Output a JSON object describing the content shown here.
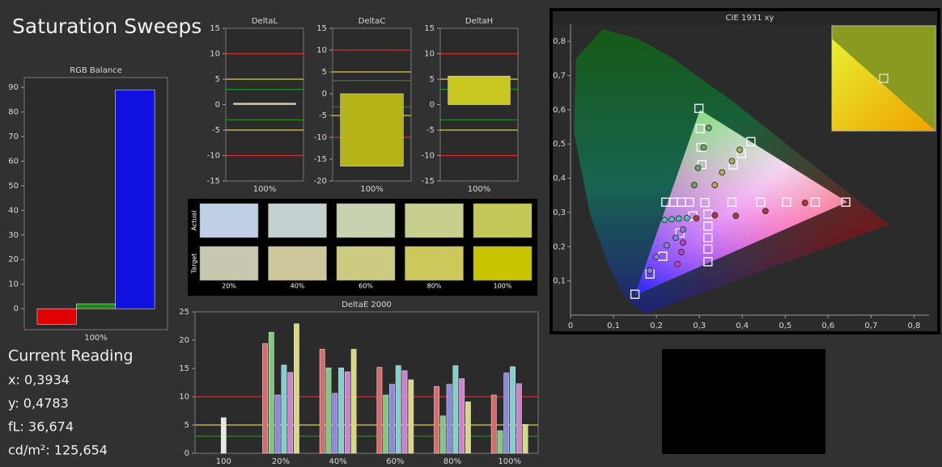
{
  "title": "Saturation Sweeps",
  "chart_data": [
    {
      "type": "bar",
      "title": "RGB Balance",
      "categories": [
        "100%"
      ],
      "series": [
        {
          "color": "#e00000",
          "values": [
            -6.3
          ]
        },
        {
          "color": "#1a8a1a",
          "values": [
            2
          ]
        },
        {
          "color": "#1010e0",
          "values": [
            89
          ]
        }
      ],
      "ylim": [
        -8.5,
        94
      ],
      "yticks": [
        0,
        10,
        20,
        30,
        40,
        50,
        60,
        70,
        80,
        90
      ]
    },
    {
      "type": "bar",
      "title": "DeltaL",
      "categories": [
        "100%"
      ],
      "series": [
        {
          "color": "#c8c8a0",
          "values": [
            0.3
          ]
        }
      ],
      "ylim": [
        -15,
        15
      ],
      "yticks": [
        -15,
        -10,
        -5,
        0,
        5,
        10,
        15
      ],
      "threshold_lines": [
        {
          "value": 10,
          "color": "#d03030"
        },
        {
          "value": 5,
          "color": "#d8d040"
        },
        {
          "value": 3,
          "color": "#2a8a2a"
        },
        {
          "value": -3,
          "color": "#2a8a2a"
        },
        {
          "value": -5,
          "color": "#d8d040"
        },
        {
          "value": -10,
          "color": "#d03030"
        }
      ]
    },
    {
      "type": "bar",
      "title": "DeltaC",
      "categories": [
        "100%"
      ],
      "series": [
        {
          "color": "#b4b418",
          "values": [
            -16.6
          ]
        }
      ],
      "ylim": [
        -20,
        15
      ],
      "yticks": [
        -20,
        -15,
        -10,
        -5,
        0,
        5,
        10,
        15
      ],
      "threshold_lines": [
        {
          "value": 10,
          "color": "#d03030"
        },
        {
          "value": 5,
          "color": "#d8d040"
        },
        {
          "value": 3,
          "color": "#2a8a2a"
        },
        {
          "value": -3,
          "color": "#2a8a2a"
        },
        {
          "value": -5,
          "color": "#d8d040"
        },
        {
          "value": -10,
          "color": "#d03030"
        }
      ]
    },
    {
      "type": "bar",
      "title": "DeltaH",
      "categories": [
        "100%"
      ],
      "series": [
        {
          "color": "#c8c820",
          "values": [
            5.6
          ]
        }
      ],
      "ylim": [
        -15,
        15
      ],
      "yticks": [
        -15,
        -10,
        -5,
        0,
        5,
        10,
        15
      ],
      "threshold_lines": [
        {
          "value": 10,
          "color": "#d03030"
        },
        {
          "value": 5,
          "color": "#d8d040"
        },
        {
          "value": 3,
          "color": "#2a8a2a"
        },
        {
          "value": -3,
          "color": "#2a8a2a"
        },
        {
          "value": -5,
          "color": "#d8d040"
        },
        {
          "value": -10,
          "color": "#d03030"
        }
      ]
    },
    {
      "type": "bar",
      "title": "DeltaE 2000",
      "categories": [
        "100",
        "20%",
        "40%",
        "60%",
        "80%",
        "100%"
      ],
      "series": [
        {
          "color": "#e8e8e8",
          "values": [
            6.3,
            null,
            null,
            null,
            null,
            null
          ]
        },
        {
          "color": "#d86a6a",
          "values": [
            null,
            19.4,
            18.4,
            15.2,
            11.8,
            10.3
          ]
        },
        {
          "color": "#80c880",
          "values": [
            null,
            21.4,
            15.1,
            10.3,
            6.6,
            4.0
          ]
        },
        {
          "color": "#8a8ae0",
          "values": [
            null,
            10.3,
            10.6,
            12.2,
            12.2,
            14.2
          ]
        },
        {
          "color": "#80d0d0",
          "values": [
            null,
            15.6,
            15.1,
            15.5,
            15.5,
            15.3
          ]
        },
        {
          "color": "#d080d0",
          "values": [
            null,
            14.3,
            14.4,
            14.6,
            13.2,
            12.3
          ]
        },
        {
          "color": "#d8d880",
          "values": [
            null,
            22.9,
            18.4,
            13.0,
            9.1,
            5.1
          ]
        }
      ],
      "ylim": [
        0,
        25
      ],
      "yticks": [
        0,
        5,
        10,
        15,
        20,
        25
      ],
      "threshold_lines": [
        {
          "value": 10,
          "color": "#d03030"
        },
        {
          "value": 5,
          "color": "#d8d040"
        },
        {
          "value": 3,
          "color": "#2a8a2a"
        }
      ]
    },
    {
      "type": "scatter",
      "title": "CIE 1931 xy",
      "series": [
        {
          "marker": "square",
          "color": "#ffffff",
          "x": [
            0.376,
            0.443,
            0.503,
            0.57,
            0.641,
            0.306,
            0.304,
            0.302,
            0.299,
            0.285,
            0.255,
            0.215,
            0.185,
            0.15,
            0.222,
            0.24,
            0.258,
            0.277,
            0.32,
            0.32,
            0.32,
            0.32,
            0.32,
            0.379,
            0.398,
            0.42,
            0.313
          ],
          "values": [
            0.33,
            0.33,
            0.33,
            0.33,
            0.33,
            0.44,
            0.49,
            0.545,
            0.604,
            0.29,
            0.24,
            0.172,
            0.12,
            0.061,
            0.33,
            0.33,
            0.33,
            0.33,
            0.295,
            0.26,
            0.226,
            0.193,
            0.156,
            0.439,
            0.472,
            0.507,
            0.329
          ]
        },
        {
          "marker": "circle",
          "color": "#b03a3a",
          "x": [
            0.293,
            0.336,
            0.385,
            0.454,
            0.546
          ],
          "values": [
            0.283,
            0.292,
            0.29,
            0.304,
            0.328
          ]
        },
        {
          "marker": "circle",
          "color": "#6aa85a",
          "x": [
            0.288,
            0.297,
            0.31,
            0.322
          ],
          "values": [
            0.38,
            0.43,
            0.49,
            0.547
          ]
        },
        {
          "marker": "circle",
          "color": "#8080d8",
          "x": [
            0.262,
            0.245,
            0.224,
            0.2,
            0.185
          ],
          "values": [
            0.25,
            0.226,
            0.204,
            0.17,
            0.13
          ]
        },
        {
          "marker": "circle",
          "color": "#50c0b0",
          "x": [
            0.219,
            0.236,
            0.252,
            0.271
          ],
          "values": [
            0.278,
            0.28,
            0.282,
            0.284
          ]
        },
        {
          "marker": "circle",
          "color": "#c040c0",
          "x": [
            0.262,
            0.258,
            0.249
          ],
          "values": [
            0.212,
            0.184,
            0.149
          ]
        },
        {
          "marker": "circle",
          "color": "#b0b050",
          "x": [
            0.336,
            0.353,
            0.376,
            0.394
          ],
          "values": [
            0.38,
            0.417,
            0.45,
            0.483
          ]
        }
      ],
      "xlim": [
        0,
        0.835
      ],
      "ylim": [
        0,
        0.85
      ],
      "xticks": [
        0,
        {
          "value": 0.1,
          "label": "0,1"
        },
        {
          "value": 0.2,
          "label": "0,2"
        },
        {
          "value": 0.3,
          "label": "0,3"
        },
        {
          "value": 0.4,
          "label": "0,4"
        },
        {
          "value": 0.5,
          "label": "0,5"
        },
        {
          "value": 0.6,
          "label": "0,6"
        },
        {
          "value": 0.7,
          "label": "0,7"
        },
        {
          "value": 0.8,
          "label": "0,8"
        }
      ],
      "yticks": [
        {
          "value": 0.1,
          "label": "0,1"
        },
        {
          "value": 0.2,
          "label": "0,2"
        },
        {
          "value": 0.3,
          "label": "0,3"
        },
        {
          "value": 0.4,
          "label": "0,4"
        },
        {
          "value": 0.5,
          "label": "0,5"
        },
        {
          "value": 0.6,
          "label": "0,6"
        },
        {
          "value": 0.7,
          "label": "0,7"
        },
        {
          "value": 0.8,
          "label": "0,8"
        }
      ]
    }
  ],
  "swatches": {
    "row_labels": [
      "Actual",
      "Target"
    ],
    "columns": [
      "20%",
      "40%",
      "60%",
      "80%",
      "100%"
    ],
    "actual": [
      "#c0d0e4",
      "#c4cfd0",
      "#c8d2b0",
      "#c8cf8e",
      "#c4c858"
    ],
    "target": [
      "#c8c8b0",
      "#ccc89c",
      "#ccca80",
      "#ccc85c",
      "#c8c400"
    ]
  },
  "current_reading": {
    "title": "Current Reading",
    "lines": [
      "x: 0,3934",
      "y: 0,4783",
      "fL: 36,674",
      "cd/m²: 125,654"
    ]
  }
}
